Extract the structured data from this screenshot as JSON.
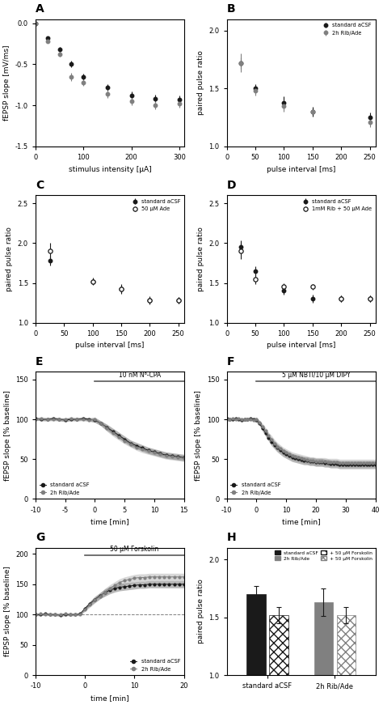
{
  "chart_data": [
    {
      "type": "scatter",
      "title": "A",
      "xlabel": "stimulus intensity [μA]",
      "ylabel": "fEPSP slope [mV/ms]",
      "x": [
        0,
        25,
        50,
        75,
        100,
        150,
        200,
        250,
        300
      ],
      "series": [
        {
          "color": "#1a1a1a",
          "marker": "circle",
          "values": [
            0.0,
            -0.18,
            -0.32,
            -0.5,
            -0.65,
            -0.78,
            -0.88,
            -0.92,
            -0.93
          ],
          "errors": [
            0,
            0.02,
            0.03,
            0.04,
            0.04,
            0.04,
            0.05,
            0.05,
            0.05
          ]
        },
        {
          "color": "#808080",
          "marker": "circle",
          "values": [
            0.0,
            -0.22,
            -0.38,
            -0.65,
            -0.72,
            -0.86,
            -0.95,
            -1.0,
            -0.98
          ],
          "errors": [
            0,
            0.02,
            0.03,
            0.05,
            0.04,
            0.05,
            0.05,
            0.05,
            0.05
          ]
        }
      ],
      "xlim": [
        0,
        310
      ],
      "ylim": [
        -1.5,
        0.05
      ],
      "xticks": [
        0,
        100,
        200,
        300
      ],
      "yticks": [
        -1.5,
        -1.0,
        -0.5,
        0.0
      ]
    },
    {
      "type": "scatter",
      "title": "B",
      "xlabel": "pulse interval [ms]",
      "ylabel": "paired pulse ratio",
      "x": [
        25,
        50,
        100,
        150,
        250
      ],
      "series": [
        {
          "name": "standard aCSF",
          "color": "#1a1a1a",
          "marker": "circle",
          "values": [
            1.72,
            1.5,
            1.38,
            1.3,
            1.25
          ],
          "errors": [
            0.05,
            0.04,
            0.05,
            0.04,
            0.04
          ]
        },
        {
          "name": "2h Rib/Ade",
          "color": "#808080",
          "marker": "circle",
          "values": [
            1.72,
            1.48,
            1.35,
            1.3,
            1.21
          ],
          "errors": [
            0.08,
            0.04,
            0.05,
            0.02,
            0.04
          ]
        }
      ],
      "xlim": [
        0,
        260
      ],
      "ylim": [
        1.0,
        2.1
      ],
      "xticks": [
        0,
        50,
        100,
        150,
        200,
        250
      ],
      "yticks": [
        1.0,
        1.5,
        2.0
      ],
      "legend": "upper right"
    },
    {
      "type": "scatter",
      "title": "C",
      "xlabel": "pulse interval [ms]",
      "ylabel": "paired pulse ratio",
      "x": [
        25,
        100,
        150,
        200,
        250
      ],
      "series": [
        {
          "name": "standard aCSF",
          "color": "#1a1a1a",
          "marker": "circle",
          "values": [
            1.78,
            1.52,
            1.42,
            1.28,
            1.28
          ],
          "errors": [
            0.06,
            0.04,
            0.05,
            0.04,
            0.04
          ]
        },
        {
          "name": "50 μM Ade",
          "color": "#1a1a1a",
          "marker": "open circle",
          "values": [
            1.9,
            1.52,
            1.42,
            1.28,
            1.28
          ],
          "errors": [
            0.1,
            0.05,
            0.06,
            0.05,
            0.04
          ]
        }
      ],
      "xlim": [
        0,
        260
      ],
      "ylim": [
        1.0,
        2.6
      ],
      "xticks": [
        0,
        50,
        100,
        150,
        200,
        250
      ],
      "yticks": [
        1.0,
        1.5,
        2.0,
        2.5
      ],
      "legend": "upper right"
    },
    {
      "type": "scatter",
      "title": "D",
      "xlabel": "pulse interval [ms]",
      "ylabel": "paired pulse ratio",
      "x": [
        25,
        50,
        100,
        150,
        200,
        250
      ],
      "series": [
        {
          "name": "standard aCSF",
          "color": "#1a1a1a",
          "marker": "circle",
          "values": [
            1.95,
            1.65,
            1.4,
            1.3,
            1.3,
            1.3
          ],
          "errors": [
            0.08,
            0.06,
            0.05,
            0.05,
            0.04,
            0.04
          ]
        },
        {
          "name": "1mM Rib + 50 μM Ade",
          "color": "#1a1a1a",
          "marker": "open circle",
          "values": [
            1.9,
            1.55,
            1.45,
            1.45,
            1.3,
            1.3
          ],
          "errors": [
            0.1,
            0.06,
            0.05,
            0.04,
            0.04,
            0.04
          ]
        }
      ],
      "xlim": [
        0,
        260
      ],
      "ylim": [
        1.0,
        2.6
      ],
      "xticks": [
        0,
        50,
        100,
        150,
        200,
        250
      ],
      "yticks": [
        1.0,
        1.5,
        2.0,
        2.5
      ],
      "legend": "upper right"
    },
    {
      "type": "line",
      "title": "E",
      "xlabel": "time [min]",
      "ylabel": "fEPSP slope [% baseline]",
      "x": [
        -10,
        -9,
        -8,
        -7,
        -6,
        -5,
        -4,
        -3,
        -2,
        -1,
        0,
        1,
        2,
        3,
        4,
        5,
        6,
        7,
        8,
        9,
        10,
        11,
        12,
        13,
        14,
        15
      ],
      "series": [
        {
          "name": "standard aCSF",
          "color": "#1a1a1a",
          "marker": "circle",
          "values": [
            101,
            100,
            100,
            101,
            100,
            99,
            100,
            100,
            101,
            100,
            99,
            95,
            90,
            85,
            80,
            75,
            70,
            67,
            64,
            61,
            59,
            57,
            55,
            54,
            53,
            52
          ],
          "errors": [
            2,
            2,
            2,
            2,
            2,
            2,
            2,
            2,
            2,
            2,
            3,
            3,
            4,
            4,
            4,
            4,
            4,
            4,
            4,
            4,
            4,
            4,
            4,
            4,
            4,
            4
          ]
        },
        {
          "name": "2h Rib/Ade",
          "color": "#808080",
          "marker": "circle",
          "values": [
            100,
            101,
            100,
            100,
            100,
            100,
            101,
            100,
            100,
            99,
            100,
            95,
            89,
            83,
            78,
            73,
            69,
            65,
            62,
            60,
            58,
            56,
            54,
            53,
            52,
            51
          ],
          "errors": [
            2,
            2,
            2,
            2,
            2,
            2,
            2,
            2,
            2,
            2,
            3,
            3,
            4,
            4,
            4,
            4,
            4,
            4,
            4,
            4,
            4,
            4,
            4,
            4,
            4,
            4
          ]
        }
      ],
      "annotations": [
        {
          "text": "10 nM N⁶-CPA",
          "x": [
            0,
            15
          ],
          "y": 148
        }
      ],
      "xlim": [
        -10,
        15
      ],
      "ylim": [
        0,
        160
      ],
      "xticks": [
        -10,
        -5,
        0,
        5,
        10,
        15
      ],
      "yticks": [
        0,
        50,
        100,
        150
      ],
      "legend": "lower left"
    },
    {
      "type": "line",
      "title": "F",
      "xlabel": "time [min]",
      "ylabel": "fEPSP slope [% baseline]",
      "x": [
        -10,
        -9,
        -8,
        -7,
        -6,
        -5,
        -4,
        -3,
        -2,
        -1,
        0,
        1,
        2,
        3,
        4,
        5,
        6,
        7,
        8,
        9,
        10,
        11,
        12,
        13,
        14,
        15,
        16,
        17,
        18,
        19,
        20,
        21,
        22,
        23,
        24,
        25,
        26,
        27,
        28,
        29,
        30,
        31,
        32,
        33,
        34,
        35,
        36,
        37,
        38,
        39,
        40
      ],
      "series": [
        {
          "name": "standard aCSF",
          "color": "#1a1a1a",
          "marker": "circle",
          "values": [
            101,
            100,
            100,
            101,
            100,
            99,
            100,
            100,
            101,
            100,
            99,
            95,
            89,
            83,
            77,
            72,
            68,
            64,
            61,
            58,
            56,
            54,
            52,
            51,
            50,
            49,
            48,
            48,
            47,
            47,
            46,
            46,
            46,
            45,
            45,
            44,
            44,
            44,
            43,
            43,
            43,
            43,
            43,
            43,
            43,
            43,
            43,
            43,
            43,
            43,
            43
          ],
          "errors": [
            2,
            2,
            2,
            2,
            2,
            2,
            2,
            2,
            2,
            2,
            3,
            3,
            4,
            4,
            4,
            5,
            5,
            5,
            5,
            5,
            5,
            5,
            5,
            5,
            5,
            5,
            5,
            5,
            5,
            5,
            5,
            5,
            5,
            5,
            5,
            5,
            5,
            5,
            5,
            5,
            5,
            5,
            5,
            5,
            5,
            5,
            5,
            5,
            5,
            5,
            5
          ]
        },
        {
          "name": "2h Rib/Ade",
          "color": "#808080",
          "marker": "circle",
          "values": [
            100,
            100,
            101,
            100,
            101,
            100,
            100,
            100,
            100,
            99,
            100,
            96,
            91,
            86,
            80,
            75,
            70,
            66,
            63,
            60,
            58,
            56,
            54,
            53,
            52,
            51,
            50,
            49,
            48,
            48,
            47,
            47,
            47,
            47,
            46,
            46,
            46,
            46,
            45,
            45,
            45,
            45,
            45,
            45,
            45,
            45,
            45,
            45,
            45,
            45,
            45
          ],
          "errors": [
            2,
            2,
            2,
            2,
            2,
            2,
            2,
            2,
            2,
            2,
            3,
            3,
            4,
            4,
            4,
            5,
            5,
            5,
            5,
            5,
            5,
            5,
            5,
            5,
            5,
            5,
            5,
            5,
            5,
            5,
            5,
            5,
            5,
            5,
            5,
            5,
            5,
            5,
            5,
            5,
            5,
            5,
            5,
            5,
            5,
            5,
            5,
            5,
            5,
            5,
            5
          ]
        }
      ],
      "annotations": [
        {
          "text": "5 μM NBTI/10 μM DIPY",
          "x": [
            0,
            40
          ],
          "y": 148
        }
      ],
      "xlim": [
        -10,
        40
      ],
      "ylim": [
        0,
        160
      ],
      "xticks": [
        -10,
        0,
        10,
        20,
        30,
        40
      ],
      "yticks": [
        0,
        50,
        100,
        150
      ],
      "legend": "lower left"
    },
    {
      "type": "line",
      "title": "G",
      "xlabel": "time [min]",
      "ylabel": "fEPSP slope [% baseline]",
      "x": [
        -10,
        -9,
        -8,
        -7,
        -6,
        -5,
        -4,
        -3,
        -2,
        -1,
        0,
        1,
        2,
        3,
        4,
        5,
        6,
        7,
        8,
        9,
        10,
        11,
        12,
        13,
        14,
        15,
        16,
        17,
        18,
        19,
        20
      ],
      "series": [
        {
          "name": "standard aCSF",
          "color": "#1a1a1a",
          "marker": "circle",
          "values": [
            100,
            100,
            101,
            100,
            100,
            99,
            100,
            100,
            100,
            101,
            110,
            118,
            125,
            131,
            136,
            140,
            143,
            145,
            146,
            147,
            148,
            149,
            149,
            150,
            150,
            150,
            150,
            150,
            150,
            150,
            150
          ],
          "errors": [
            2,
            2,
            2,
            2,
            2,
            2,
            2,
            2,
            2,
            2,
            3,
            4,
            5,
            5,
            6,
            6,
            6,
            6,
            6,
            6,
            6,
            6,
            6,
            6,
            6,
            6,
            6,
            6,
            6,
            6,
            6
          ]
        },
        {
          "name": "2h Rib/Ade",
          "color": "#808080",
          "marker": "circle",
          "values": [
            100,
            101,
            100,
            100,
            100,
            100,
            101,
            100,
            100,
            100,
            108,
            116,
            124,
            130,
            137,
            143,
            148,
            153,
            156,
            158,
            160,
            161,
            161,
            162,
            162,
            162,
            162,
            162,
            162,
            162,
            162
          ],
          "errors": [
            2,
            2,
            2,
            2,
            2,
            2,
            2,
            2,
            2,
            2,
            3,
            4,
            5,
            5,
            6,
            6,
            6,
            6,
            6,
            6,
            6,
            6,
            6,
            6,
            6,
            6,
            6,
            6,
            6,
            6,
            6
          ]
        }
      ],
      "annotations": [
        {
          "text": "50 μM Forskolin",
          "x": [
            0,
            20
          ],
          "y": 198
        }
      ],
      "reference_lines": [
        {
          "y": 100,
          "line_style": "dashed"
        }
      ],
      "xlim": [
        -10,
        20
      ],
      "ylim": [
        0,
        210
      ],
      "xticks": [
        -10,
        0,
        10,
        20
      ],
      "yticks": [
        0,
        50,
        100,
        150,
        200
      ],
      "legend": "lower right"
    },
    {
      "type": "bar",
      "title": "H",
      "ylabel": "paired pulse ratio",
      "categories": [
        "standard aCSF",
        "2h Rib/Ade"
      ],
      "series": [
        {
          "name": "standard aCSF",
          "color": "#1a1a1a",
          "fill": "solid",
          "values": [
            1.7,
            null
          ],
          "errors": [
            0.07,
            null
          ]
        },
        {
          "name": "2h Rib/Ade",
          "color": "#808080",
          "fill": "solid",
          "values": [
            null,
            1.63
          ],
          "errors": [
            null,
            0.12
          ]
        },
        {
          "name": "+ 50 μM Forskolin",
          "color": "#1a1a1a",
          "fill": "hatched",
          "values": [
            1.52,
            null
          ],
          "errors": [
            0.07,
            null
          ]
        },
        {
          "name": "+ 50 μM Forskolin",
          "color": "#808080",
          "fill": "hatched",
          "values": [
            null,
            1.52
          ],
          "errors": [
            null,
            0.07
          ]
        }
      ],
      "ylim": [
        1.0,
        2.1
      ],
      "yticks": [
        1.0,
        1.5,
        2.0
      ],
      "legend": "upper right"
    }
  ]
}
